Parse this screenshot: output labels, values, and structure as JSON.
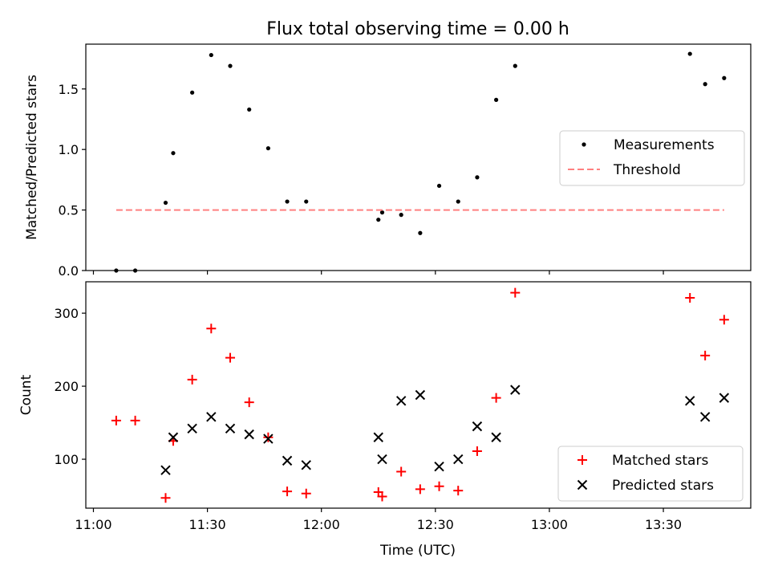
{
  "figure": {
    "title": "Flux total observing time = 0.00 h",
    "xlabel": "Time (UTC)",
    "x_ticks": [
      "11:00",
      "11:30",
      "12:00",
      "12:30",
      "13:00",
      "13:30"
    ]
  },
  "chart_data": [
    {
      "type": "scatter",
      "title": "Flux total observing time = 0.00 h",
      "xlabel": "",
      "ylabel": "Matched/Predicted stars",
      "xlim": [
        "10:58",
        "13:53"
      ],
      "ylim": [
        0,
        1.87
      ],
      "y_ticks": [
        "0.0",
        "0.5",
        "1.0",
        "1.5"
      ],
      "legend": "right",
      "grid": false,
      "series": [
        {
          "name": "Measurements",
          "color": "#000000",
          "marker": "dot",
          "points": [
            {
              "x": "11:06",
              "y": 0.0
            },
            {
              "x": "11:11",
              "y": 0.0
            },
            {
              "x": "11:19",
              "y": 0.56
            },
            {
              "x": "11:21",
              "y": 0.97
            },
            {
              "x": "11:26",
              "y": 1.47
            },
            {
              "x": "11:31",
              "y": 1.78
            },
            {
              "x": "11:36",
              "y": 1.69
            },
            {
              "x": "11:41",
              "y": 1.33
            },
            {
              "x": "11:46",
              "y": 1.01
            },
            {
              "x": "11:51",
              "y": 0.57
            },
            {
              "x": "11:56",
              "y": 0.57
            },
            {
              "x": "12:15",
              "y": 0.42
            },
            {
              "x": "12:16",
              "y": 0.48
            },
            {
              "x": "12:21",
              "y": 0.46
            },
            {
              "x": "12:26",
              "y": 0.31
            },
            {
              "x": "12:31",
              "y": 0.7
            },
            {
              "x": "12:36",
              "y": 0.57
            },
            {
              "x": "12:41",
              "y": 0.77
            },
            {
              "x": "12:46",
              "y": 1.41
            },
            {
              "x": "12:51",
              "y": 1.69
            },
            {
              "x": "13:37",
              "y": 1.79
            },
            {
              "x": "13:41",
              "y": 1.54
            },
            {
              "x": "13:46",
              "y": 1.59
            }
          ]
        },
        {
          "name": "Threshold",
          "color": "#ff8080",
          "style": "dashed",
          "points": [
            {
              "x": "11:06",
              "y": 0.5
            },
            {
              "x": "13:46",
              "y": 0.5
            }
          ]
        }
      ]
    },
    {
      "type": "scatter",
      "xlabel": "Time (UTC)",
      "ylabel": "Count",
      "xlim": [
        "10:58",
        "13:53"
      ],
      "ylim": [
        33,
        343
      ],
      "y_ticks": [
        "100",
        "200",
        "300"
      ],
      "legend": "bottom-right",
      "grid": false,
      "series": [
        {
          "name": "Matched stars",
          "color": "#ff0000",
          "marker": "plus",
          "points": [
            {
              "x": "11:06",
              "y": 153
            },
            {
              "x": "11:11",
              "y": 153
            },
            {
              "x": "11:19",
              "y": 47
            },
            {
              "x": "11:21",
              "y": 125
            },
            {
              "x": "11:26",
              "y": 209
            },
            {
              "x": "11:31",
              "y": 279
            },
            {
              "x": "11:36",
              "y": 239
            },
            {
              "x": "11:41",
              "y": 178
            },
            {
              "x": "11:46",
              "y": 130
            },
            {
              "x": "11:51",
              "y": 56
            },
            {
              "x": "11:56",
              "y": 53
            },
            {
              "x": "12:15",
              "y": 55
            },
            {
              "x": "12:16",
              "y": 49
            },
            {
              "x": "12:21",
              "y": 83
            },
            {
              "x": "12:26",
              "y": 59
            },
            {
              "x": "12:31",
              "y": 63
            },
            {
              "x": "12:36",
              "y": 57
            },
            {
              "x": "12:41",
              "y": 111
            },
            {
              "x": "12:46",
              "y": 184
            },
            {
              "x": "12:51",
              "y": 328
            },
            {
              "x": "13:37",
              "y": 321
            },
            {
              "x": "13:41",
              "y": 242
            },
            {
              "x": "13:46",
              "y": 291
            }
          ]
        },
        {
          "name": "Predicted stars",
          "color": "#000000",
          "marker": "x",
          "points": [
            {
              "x": "11:19",
              "y": 85
            },
            {
              "x": "11:21",
              "y": 130
            },
            {
              "x": "11:26",
              "y": 142
            },
            {
              "x": "11:31",
              "y": 158
            },
            {
              "x": "11:36",
              "y": 142
            },
            {
              "x": "11:41",
              "y": 134
            },
            {
              "x": "11:46",
              "y": 128
            },
            {
              "x": "11:51",
              "y": 98
            },
            {
              "x": "11:56",
              "y": 92
            },
            {
              "x": "12:15",
              "y": 130
            },
            {
              "x": "12:16",
              "y": 100
            },
            {
              "x": "12:21",
              "y": 180
            },
            {
              "x": "12:26",
              "y": 188
            },
            {
              "x": "12:31",
              "y": 90
            },
            {
              "x": "12:36",
              "y": 100
            },
            {
              "x": "12:41",
              "y": 145
            },
            {
              "x": "12:46",
              "y": 130
            },
            {
              "x": "12:51",
              "y": 195
            },
            {
              "x": "13:37",
              "y": 180
            },
            {
              "x": "13:41",
              "y": 158
            },
            {
              "x": "13:46",
              "y": 184
            }
          ]
        }
      ]
    }
  ]
}
